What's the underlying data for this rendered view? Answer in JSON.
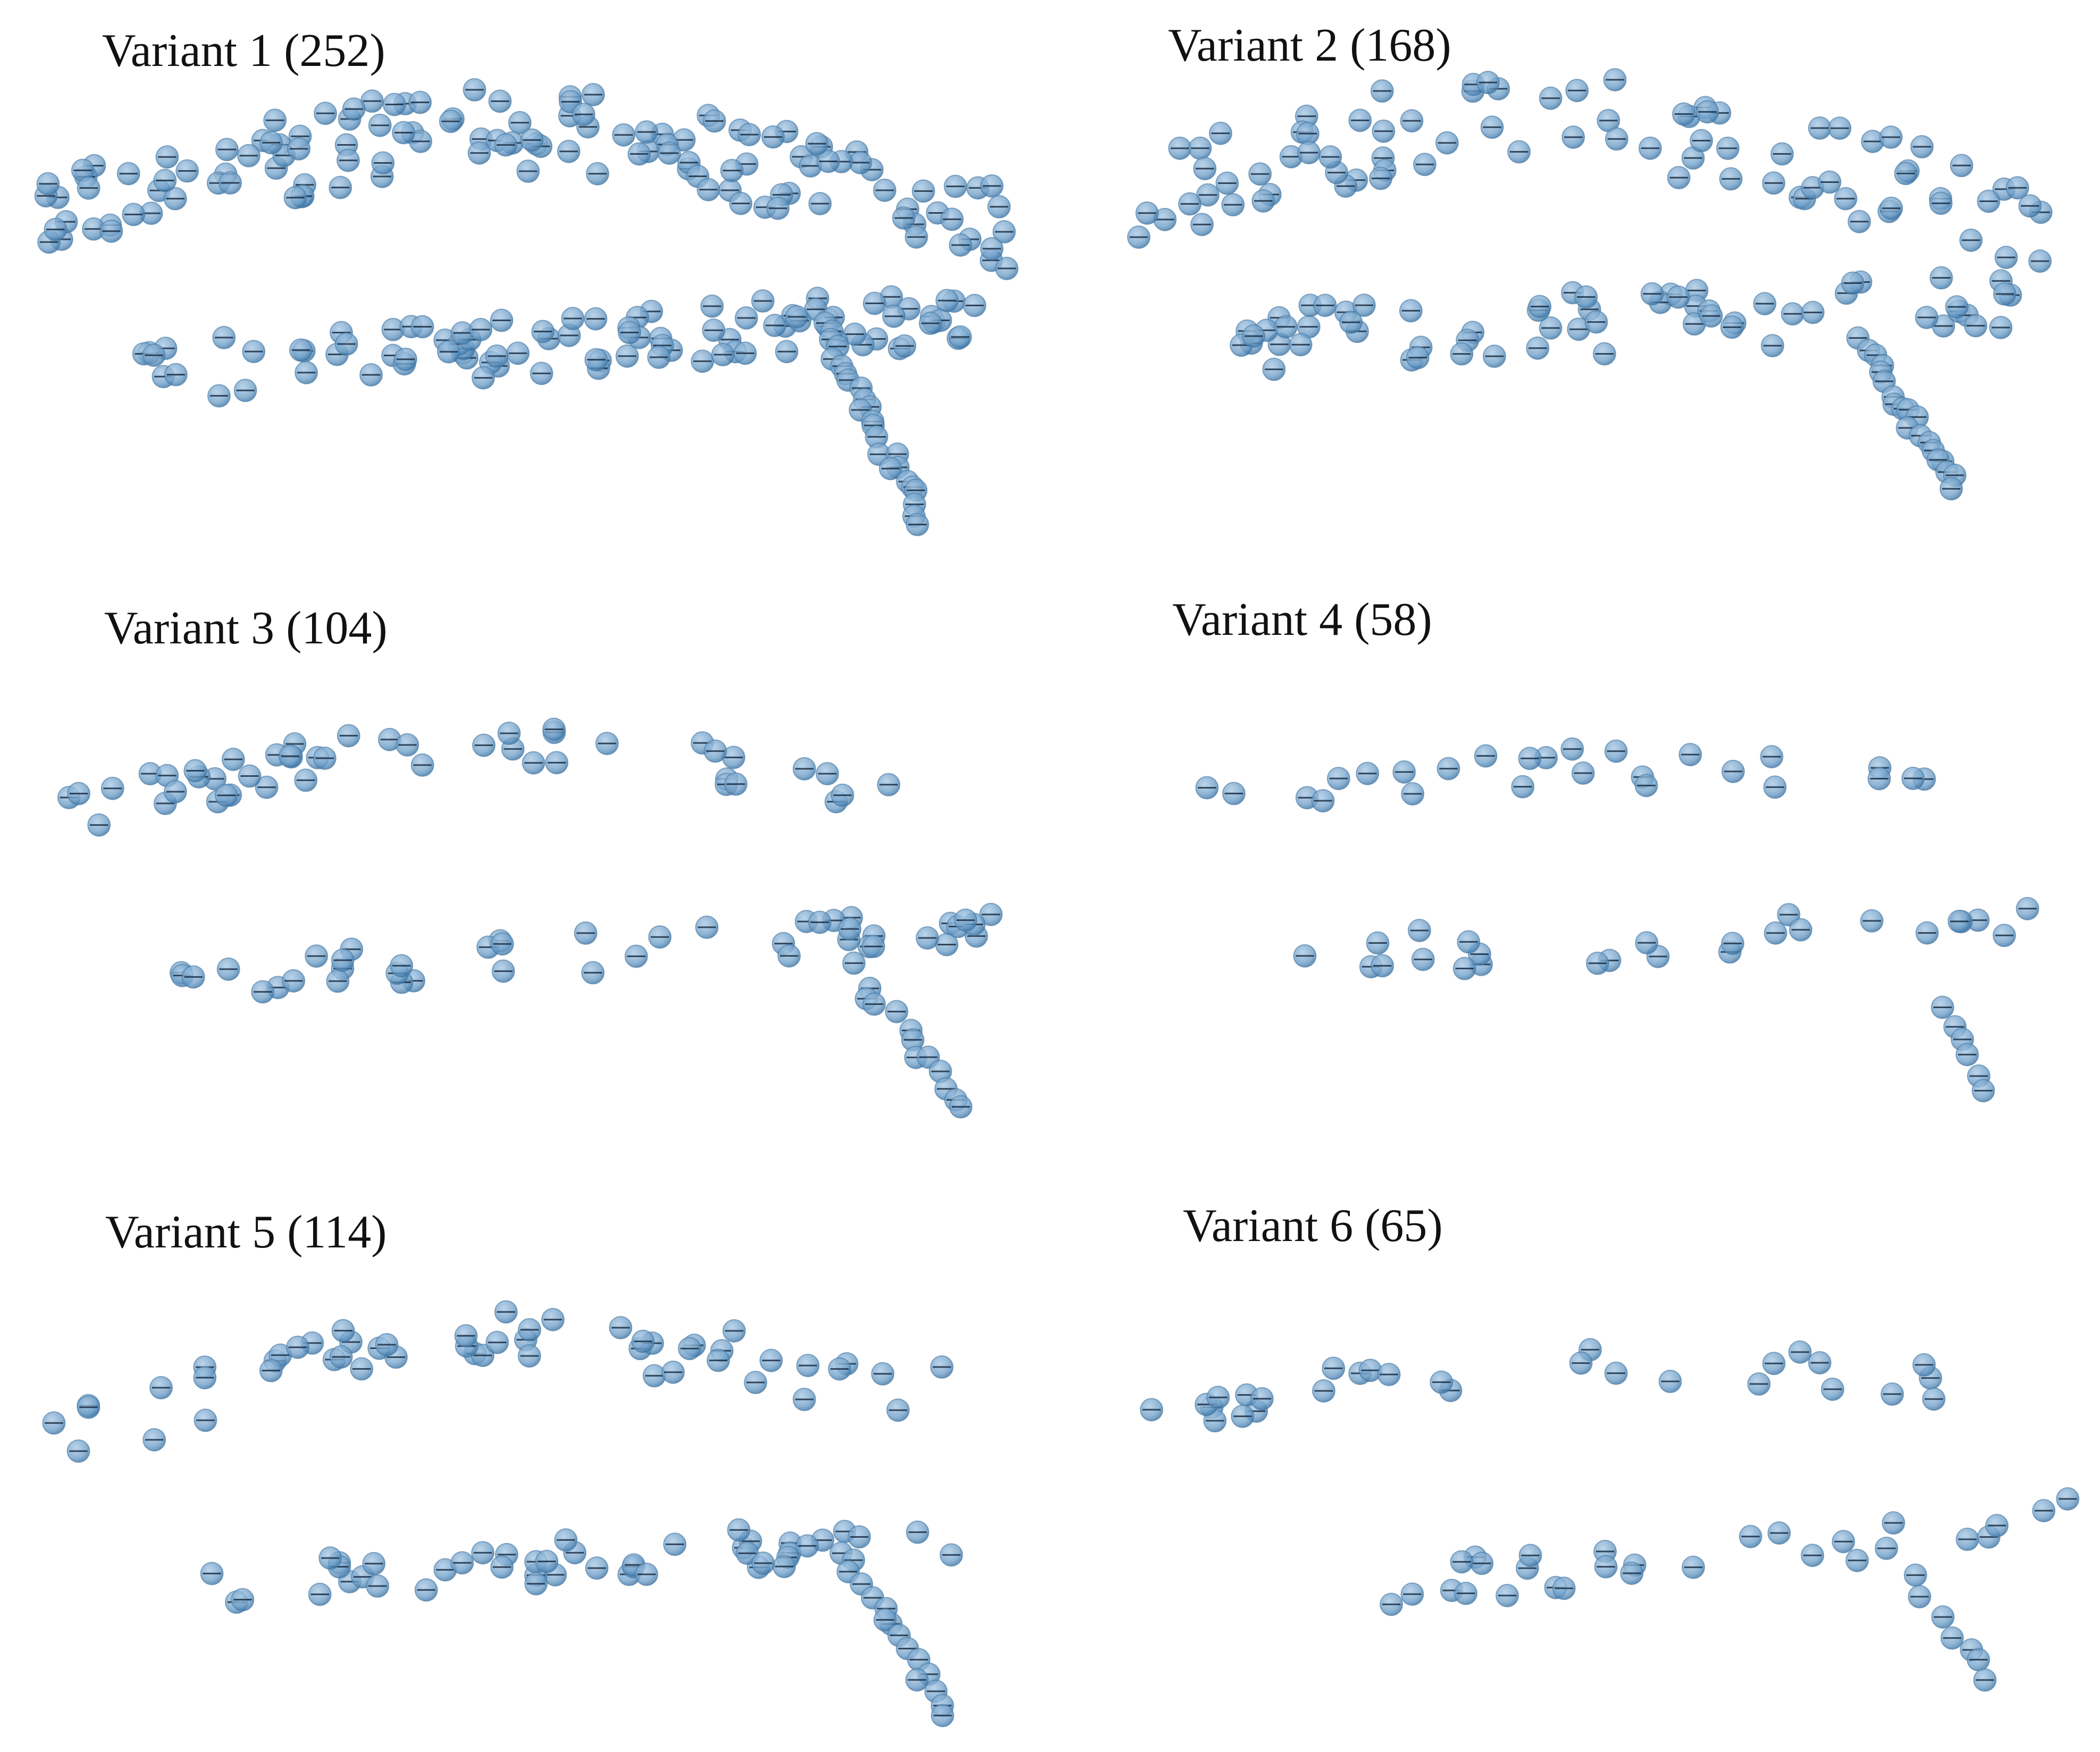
{
  "panels": [
    {
      "title": "Variant 1 (252)"
    },
    {
      "title": "Variant 2 (168)"
    },
    {
      "title": "Variant 3 (104)"
    },
    {
      "title": "Variant 4 (58)"
    },
    {
      "title": "Variant 5 (114)"
    },
    {
      "title": "Variant 6 (65)"
    }
  ],
  "colors": {
    "sphere_fill": "#6f9fc8",
    "sphere_dark": "#2f6b9e",
    "sphere_edge": "#4a7aa3",
    "equator_line": "#1b2f44",
    "title_text": "#111111",
    "background": "#ffffff"
  },
  "glyph": "semi-transparent sphere marker"
}
